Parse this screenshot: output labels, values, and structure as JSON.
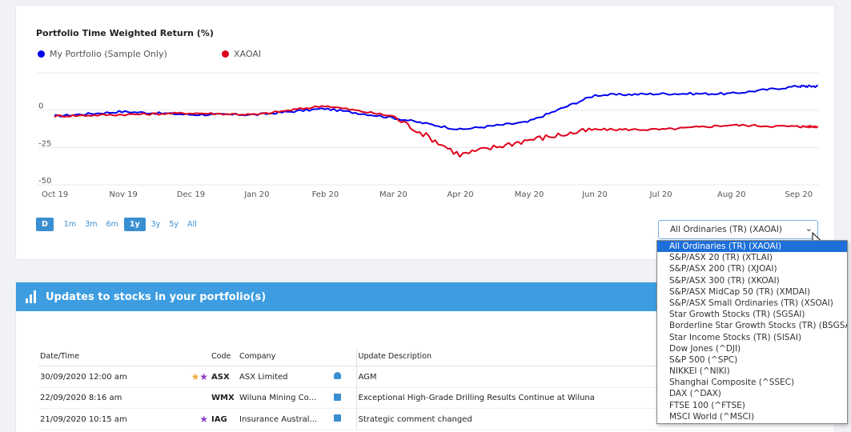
{
  "chart": {
    "title": "Portfolio Time Weighted Return (%)",
    "legend": [
      {
        "name": "My Portfolio (Sample Only)",
        "color": "#0000ee"
      },
      {
        "name": "XAOAI",
        "color": "#e0001b"
      }
    ]
  },
  "chart_data": {
    "type": "line",
    "title": "Portfolio Time Weighted Return (%)",
    "xlabel": "",
    "ylabel": "",
    "ylim": [
      -50,
      25
    ],
    "yticks": [
      "0",
      "-25",
      "-50"
    ],
    "x": [
      "Oct 19",
      "Nov 19",
      "Dec 19",
      "Jan 20",
      "Feb 20",
      "Mar 20",
      "Apr 20",
      "May 20",
      "Jun 20",
      "Jul 20",
      "Aug 20",
      "Sep 20"
    ],
    "series": [
      {
        "name": "My Portfolio (Sample Only)",
        "color": "#0000ee",
        "values": [
          -4,
          -1,
          -3,
          -3,
          1,
          -5,
          -13,
          -8,
          10,
          11,
          11,
          16
        ]
      },
      {
        "name": "XAOAI",
        "color": "#e0001b",
        "values": [
          -4,
          -3,
          -2,
          -3,
          3,
          -4,
          -30,
          -20,
          -13,
          -13,
          -10,
          -11
        ]
      }
    ],
    "grid": true,
    "legend_position": "top-left"
  },
  "range_buttons": [
    "D",
    "1m",
    "3m",
    "6m",
    "1y",
    "3y",
    "5y",
    "All"
  ],
  "range_active": "1y",
  "benchmark_select": {
    "value": "All Ordinaries (TR) (XAOAI)",
    "chevron_icon": "chevron-down-icon"
  },
  "dropdown_options": [
    "All Ordinaries (TR) (XAOAI)",
    "S&P/ASX 20 (TR) (XTLAI)",
    "S&P/ASX 200 (TR) (XJOAI)",
    "S&P/ASX 300 (TR) (XKOAI)",
    "S&P/ASX MidCap 50 (TR) (XMDAI)",
    "S&P/ASX Small Ordinaries (TR) (XSOAI)",
    "Star Growth Stocks (TR) (SGSAI)",
    "Borderline Star Growth Stocks (TR) (BSGSAI)",
    "Star Income Stocks (TR) (SISAI)",
    "Dow Jones (^DJI)",
    "S&P 500 (^SPC)",
    "NIKKEI (^NIKI)",
    "Shanghai Composite (^SSEC)",
    "DAX (^DAX)",
    "FTSE 100 (^FTSE)",
    "MSCI World (^MSCI)"
  ],
  "updates": {
    "title": "Updates to stocks in your portfolio(s)",
    "columns": {
      "date": "Date/Time",
      "code": "Code",
      "company": "Company",
      "description": "Update Description"
    },
    "rows": [
      {
        "date": "30/09/2020 12:00 am",
        "stars": [
          "gold",
          "purple"
        ],
        "code": "ASX",
        "company": "ASX Limited",
        "type_icon": "person-icon",
        "description": "AGM",
        "desc_link": false
      },
      {
        "date": "22/09/2020 8:16 am",
        "stars": [],
        "code": "WMX",
        "company": "Wiluna Mining Co...",
        "type_icon": "megaphone-icon",
        "description": "Exceptional High-Grade Drilling Results Continue at Wiluna",
        "desc_link": true
      },
      {
        "date": "21/09/2020 10:15 am",
        "stars": [
          "purple"
        ],
        "code": "IAG",
        "company": "Insurance Austral...",
        "type_icon": "graduation-cap-icon",
        "description": "Strategic comment changed",
        "desc_link": true
      }
    ]
  }
}
